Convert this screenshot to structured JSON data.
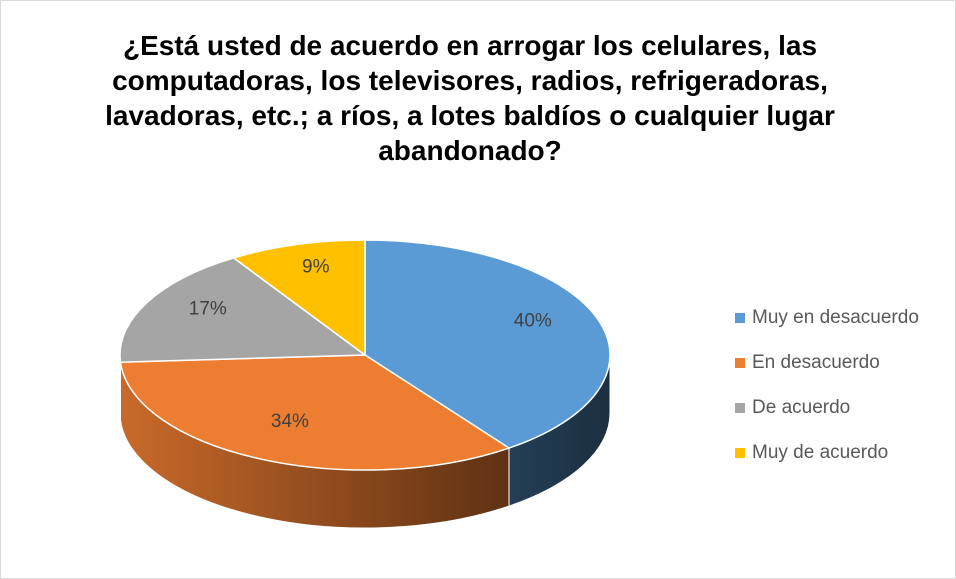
{
  "chart_data": {
    "type": "pie3d",
    "title": "¿Está usted de acuerdo en arrogar los celulares, las computadoras, los televisores, radios, refrigeradoras, lavadoras, etc.; a ríos, a lotes baldíos o cualquier lugar abandonado?",
    "categories": [
      "Muy en desacuerdo",
      "En desacuerdo",
      "De acuerdo",
      "Muy de acuerdo"
    ],
    "values": [
      40,
      34,
      17,
      9
    ],
    "value_labels": [
      "40%",
      "34%",
      "17%",
      "9%"
    ],
    "colors": [
      "#5b9bd5",
      "#ed7d31",
      "#a5a5a5",
      "#ffc000"
    ],
    "legend": "right"
  }
}
